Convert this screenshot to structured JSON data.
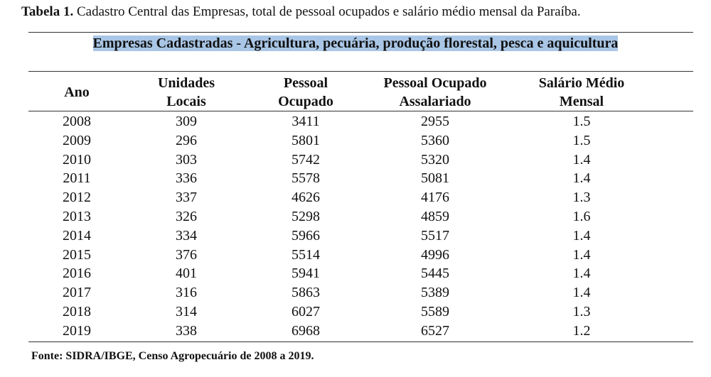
{
  "caption": {
    "label": "Tabela 1.",
    "text": "Cadastro Central das Empresas, total de pessoal ocupados e salário médio mensal da Paraíba."
  },
  "table": {
    "title": "Empresas Cadastradas - Agricultura, pecuária, produção florestal, pesca e aquicultura",
    "columns": [
      [
        "Ano"
      ],
      [
        "Unidades",
        "Locais"
      ],
      [
        "Pessoal",
        "Ocupado"
      ],
      [
        "Pessoal Ocupado",
        "Assalariado"
      ],
      [
        "Salário Médio",
        "Mensal"
      ]
    ],
    "rows": [
      [
        2008,
        309,
        3411,
        2955,
        1.5
      ],
      [
        2009,
        296,
        5801,
        5360,
        1.5
      ],
      [
        2010,
        303,
        5742,
        5320,
        1.4
      ],
      [
        2011,
        336,
        5578,
        5081,
        1.4
      ],
      [
        2012,
        337,
        4626,
        4176,
        1.3
      ],
      [
        2013,
        326,
        5298,
        4859,
        1.6
      ],
      [
        2014,
        334,
        5966,
        5517,
        1.4
      ],
      [
        2015,
        376,
        5514,
        4996,
        1.4
      ],
      [
        2016,
        401,
        5941,
        5445,
        1.4
      ],
      [
        2017,
        316,
        5863,
        5389,
        1.4
      ],
      [
        2018,
        314,
        6027,
        5589,
        1.3
      ],
      [
        2019,
        338,
        6968,
        6527,
        1.2
      ]
    ]
  },
  "footer": "Fonte: SIDRA/IBGE, Censo Agropecuário de 2008 a 2019."
}
